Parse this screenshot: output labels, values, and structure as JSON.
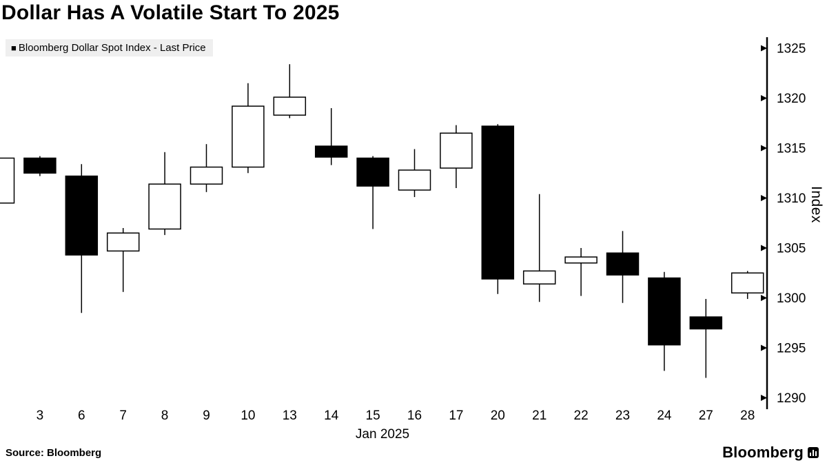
{
  "title": "Dollar Has A Volatile Start To 2025",
  "legend": {
    "marker": "■",
    "label": "Bloomberg Dollar Spot Index - Last Price"
  },
  "axis": {
    "y_label": "Index",
    "x_label": "Jan 2025"
  },
  "source": "Source: Bloomberg",
  "brand": "Bloomberg",
  "chart_data": {
    "type": "candlestick",
    "title": "Dollar Has A Volatile Start To 2025",
    "series_name": "Bloomberg Dollar Spot Index - Last Price",
    "xlabel": "Jan 2025",
    "ylabel": "Index",
    "ylim": [
      1289,
      1326.5
    ],
    "yticks": [
      1290,
      1295,
      1300,
      1305,
      1310,
      1315,
      1320,
      1325
    ],
    "grid": false,
    "legend_position": "top-left",
    "colors": {
      "up_fill": "#ffffff",
      "down_fill": "#000000",
      "stroke": "#000000"
    },
    "candles": [
      {
        "label": "",
        "open": 1309.5,
        "high": 1314.2,
        "low": 1309.0,
        "close": 1314.0
      },
      {
        "label": "3",
        "open": 1314.0,
        "high": 1314.2,
        "low": 1312.2,
        "close": 1312.5
      },
      {
        "label": "6",
        "open": 1312.2,
        "high": 1313.4,
        "low": 1298.5,
        "close": 1304.3
      },
      {
        "label": "7",
        "open": 1304.7,
        "high": 1307.0,
        "low": 1300.6,
        "close": 1306.5
      },
      {
        "label": "8",
        "open": 1306.9,
        "high": 1314.6,
        "low": 1306.3,
        "close": 1311.4
      },
      {
        "label": "9",
        "open": 1311.4,
        "high": 1315.4,
        "low": 1310.6,
        "close": 1313.1
      },
      {
        "label": "10",
        "open": 1313.1,
        "high": 1321.5,
        "low": 1312.5,
        "close": 1319.2
      },
      {
        "label": "13",
        "open": 1318.3,
        "high": 1323.4,
        "low": 1318.0,
        "close": 1320.1
      },
      {
        "label": "14",
        "open": 1315.2,
        "high": 1319.0,
        "low": 1313.3,
        "close": 1314.1
      },
      {
        "label": "15",
        "open": 1314.0,
        "high": 1314.2,
        "low": 1306.9,
        "close": 1311.2
      },
      {
        "label": "16",
        "open": 1310.8,
        "high": 1314.9,
        "low": 1310.1,
        "close": 1312.8
      },
      {
        "label": "17",
        "open": 1313.0,
        "high": 1317.3,
        "low": 1311.0,
        "close": 1316.5
      },
      {
        "label": "20",
        "open": 1317.2,
        "high": 1317.4,
        "low": 1300.4,
        "close": 1301.9
      },
      {
        "label": "21",
        "open": 1301.4,
        "high": 1310.4,
        "low": 1299.6,
        "close": 1302.7
      },
      {
        "label": "22",
        "open": 1303.5,
        "high": 1305.0,
        "low": 1300.2,
        "close": 1304.1
      },
      {
        "label": "23",
        "open": 1304.5,
        "high": 1306.7,
        "low": 1299.5,
        "close": 1302.3
      },
      {
        "label": "24",
        "open": 1302.0,
        "high": 1302.6,
        "low": 1292.7,
        "close": 1295.3
      },
      {
        "label": "27",
        "open": 1298.1,
        "high": 1299.9,
        "low": 1292.0,
        "close": 1296.9
      },
      {
        "label": "28",
        "open": 1300.5,
        "high": 1302.7,
        "low": 1299.9,
        "close": 1302.5
      }
    ]
  }
}
